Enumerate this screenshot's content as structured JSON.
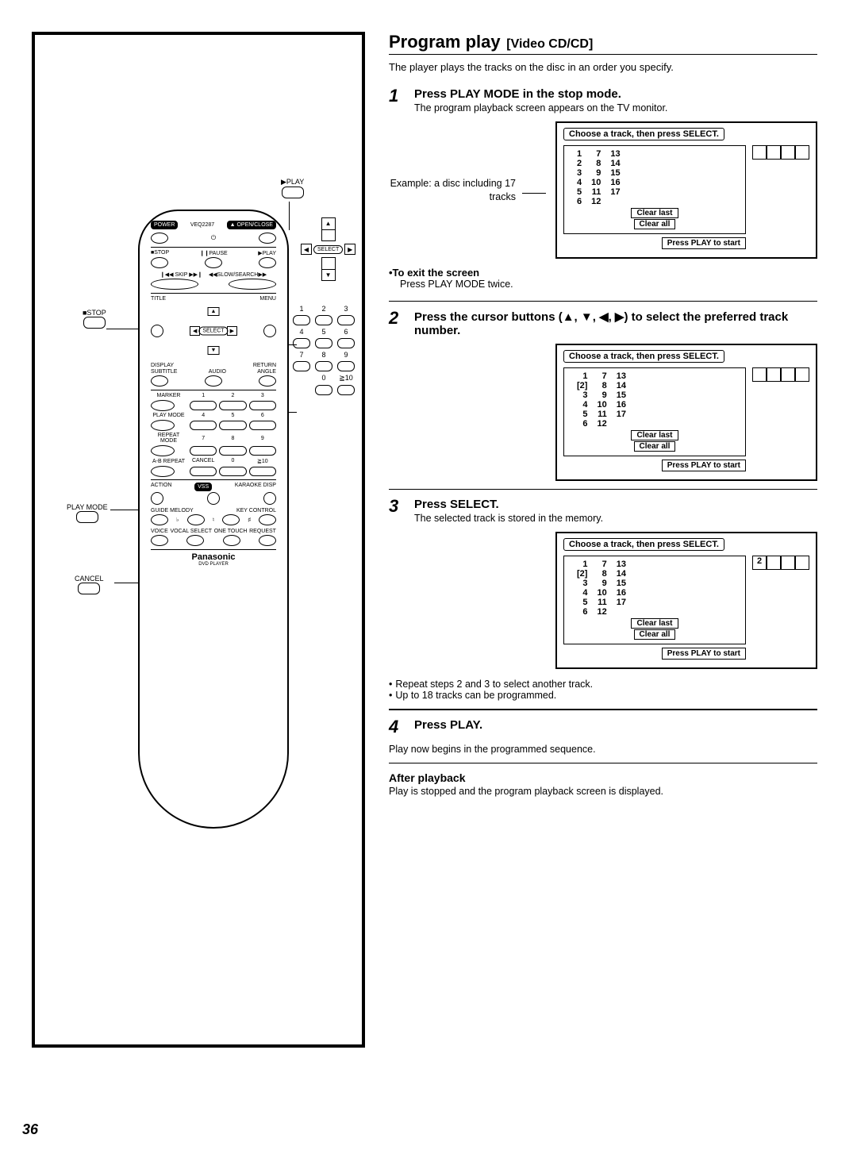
{
  "page_number": "36",
  "title": "Program play",
  "subtitle": "[Video CD/CD]",
  "intro": "The player plays the tracks on the disc in an order you specify.",
  "steps": [
    {
      "num": "1",
      "head": "Press PLAY MODE in the stop mode.",
      "text": "The program playback screen appears on the TV monitor.",
      "example_label": "Example: a disc including 17 tracks",
      "tv": {
        "header": "Choose a track, then press SELECT.",
        "rows": [
          [
            "1",
            "7",
            "13"
          ],
          [
            "2",
            "8",
            "14"
          ],
          [
            "3",
            "9",
            "15"
          ],
          [
            "4",
            "10",
            "16"
          ],
          [
            "5",
            "11",
            "17"
          ],
          [
            "6",
            "12",
            ""
          ]
        ],
        "selected_col": -1,
        "selected_row": -1,
        "buttons": [
          "Clear last",
          "Clear all"
        ],
        "start": "Press PLAY to start",
        "slots": [
          "",
          "",
          "",
          ""
        ]
      },
      "exit_title": "•To exit the screen",
      "exit_text": "Press PLAY MODE twice."
    },
    {
      "num": "2",
      "head": "Press the cursor buttons (▲, ▼, ◀, ▶) to select the preferred track number.",
      "tv": {
        "header": "Choose a track, then press SELECT.",
        "rows": [
          [
            "1",
            "7",
            "13"
          ],
          [
            "[2]",
            "8",
            "14"
          ],
          [
            "3",
            "9",
            "15"
          ],
          [
            "4",
            "10",
            "16"
          ],
          [
            "5",
            "11",
            "17"
          ],
          [
            "6",
            "12",
            ""
          ]
        ],
        "buttons": [
          "Clear last",
          "Clear all"
        ],
        "start": "Press PLAY to start",
        "slots": [
          "",
          "",
          "",
          ""
        ]
      }
    },
    {
      "num": "3",
      "head": "Press SELECT.",
      "text": "The selected track is stored in the memory.",
      "tv": {
        "header": "Choose a track, then press SELECT.",
        "rows": [
          [
            "1",
            "7",
            "13"
          ],
          [
            "[2]",
            "8",
            "14"
          ],
          [
            "3",
            "9",
            "15"
          ],
          [
            "4",
            "10",
            "16"
          ],
          [
            "5",
            "11",
            "17"
          ],
          [
            "6",
            "12",
            ""
          ]
        ],
        "buttons": [
          "Clear last",
          "Clear all"
        ],
        "start": "Press PLAY to start",
        "slots": [
          "2",
          "",
          "",
          ""
        ]
      },
      "notes": [
        "Repeat steps 2 and 3 to select another track.",
        "Up to 18 tracks can be programmed."
      ]
    },
    {
      "num": "4",
      "head": "Press PLAY.",
      "text2": "Play now begins in the programmed sequence."
    }
  ],
  "after_head": "After playback",
  "after_text": "Play is stopped and the program playback screen is displayed.",
  "remote": {
    "model": "VEQ2287",
    "brand": "Panasonic",
    "brand_sub": "DVD PLAYER",
    "power": "POWER",
    "open": "▲ OPEN/CLOSE",
    "stop": "■STOP",
    "pause": "❙❙PAUSE",
    "play": "▶PLAY",
    "skip": "❙◀◀ SKIP ▶▶❙",
    "slow": "◀◀SLOW/SEARCH▶▶",
    "title": "TITLE",
    "menu": "MENU",
    "select": "SELECT",
    "display": "DISPLAY",
    "return": "RETURN",
    "subtitle": "SUBTITLE",
    "audio": "AUDIO",
    "angle": "ANGLE",
    "marker": "MARKER",
    "playmode": "PLAY MODE",
    "repeat": "REPEAT MODE",
    "ab": "A-B REPEAT",
    "cancel": "CANCEL",
    "action": "ACTION",
    "vss": "VSS",
    "karaoke": "KARAOKE DISP",
    "guide": "GUIDE MELODY",
    "key": "KEY CONTROL",
    "voice": "VOICE",
    "vocal": "VOCAL SELECT",
    "one": "ONE TOUCH",
    "request": "REQUEST",
    "nums": [
      "1",
      "2",
      "3",
      "4",
      "5",
      "6",
      "7",
      "8",
      "9",
      "",
      "0",
      "≧10"
    ]
  },
  "callouts": {
    "play_label": "▶PLAY",
    "stop_label": "■STOP",
    "playmode_label": "PLAY MODE",
    "cancel_label": "CANCEL",
    "select": "SELECT",
    "side_nums": [
      "1",
      "2",
      "3",
      "4",
      "5",
      "6",
      "7",
      "8",
      "9",
      "",
      "0",
      "≧10"
    ]
  }
}
